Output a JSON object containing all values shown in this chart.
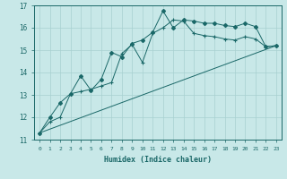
{
  "title": "",
  "xlabel": "Humidex (Indice chaleur)",
  "bg_color": "#c8e8e8",
  "grid_color": "#a8d0d0",
  "line_color": "#1a6868",
  "xlim": [
    -0.5,
    23.5
  ],
  "ylim": [
    11,
    17
  ],
  "yticks": [
    11,
    12,
    13,
    14,
    15,
    16,
    17
  ],
  "xticks": [
    0,
    1,
    2,
    3,
    4,
    5,
    6,
    7,
    8,
    9,
    10,
    11,
    12,
    13,
    14,
    15,
    16,
    17,
    18,
    19,
    20,
    21,
    22,
    23
  ],
  "line1_x": [
    0,
    1,
    2,
    3,
    4,
    5,
    6,
    7,
    8,
    9,
    10,
    11,
    12,
    13,
    14,
    15,
    16,
    17,
    18,
    19,
    20,
    21,
    22,
    23
  ],
  "line1_y": [
    11.3,
    12.0,
    12.65,
    13.05,
    13.85,
    13.2,
    13.7,
    14.9,
    14.7,
    15.3,
    15.45,
    15.8,
    16.75,
    16.0,
    16.35,
    16.3,
    16.2,
    16.2,
    16.1,
    16.05,
    16.2,
    16.05,
    15.15,
    15.2
  ],
  "line2_x": [
    0,
    1,
    2,
    3,
    4,
    5,
    6,
    7,
    8,
    9,
    10,
    11,
    12,
    13,
    14,
    15,
    16,
    17,
    18,
    19,
    20,
    21,
    22,
    23
  ],
  "line2_y": [
    11.3,
    11.8,
    12.0,
    13.05,
    13.15,
    13.25,
    13.4,
    13.55,
    14.85,
    15.25,
    14.45,
    15.75,
    16.0,
    16.35,
    16.3,
    15.75,
    15.65,
    15.6,
    15.5,
    15.45,
    15.6,
    15.5,
    15.15,
    15.2
  ],
  "line3_x": [
    0,
    23
  ],
  "line3_y": [
    11.3,
    15.2
  ]
}
